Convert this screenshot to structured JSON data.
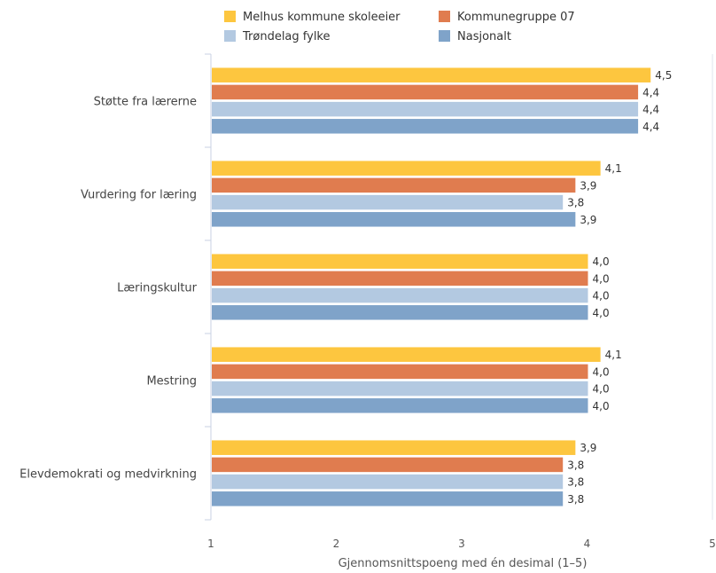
{
  "chart_data": {
    "type": "bar",
    "orientation": "horizontal",
    "categories": [
      "Støtte fra lærerne",
      "Vurdering for læring",
      "Læringskultur",
      "Mestring",
      "Elevdemokrati og medvirkning"
    ],
    "series": [
      {
        "name": "Melhus kommune skoleeier",
        "color": "#fdc63f",
        "values": [
          4.5,
          4.1,
          4.0,
          4.1,
          3.9
        ],
        "labels": [
          "4,5",
          "4,1",
          "4,0",
          "4,1",
          "3,9"
        ]
      },
      {
        "name": "Kommunegruppe 07",
        "color": "#e07c4f",
        "values": [
          4.4,
          3.9,
          4.0,
          4.0,
          3.8
        ],
        "labels": [
          "4,4",
          "3,9",
          "4,0",
          "4,0",
          "3,8"
        ]
      },
      {
        "name": "Trøndelag fylke",
        "color": "#b3c9e1",
        "values": [
          4.4,
          3.8,
          4.0,
          4.0,
          3.8
        ],
        "labels": [
          "4,4",
          "3,8",
          "4,0",
          "4,0",
          "3,8"
        ]
      },
      {
        "name": "Nasjonalt",
        "color": "#7fa3c9",
        "values": [
          4.4,
          3.9,
          4.0,
          4.0,
          3.8
        ],
        "labels": [
          "4,4",
          "3,9",
          "4,0",
          "4,0",
          "3,8"
        ]
      }
    ],
    "xlabel": "Gjennomsnittspoeng med én desimal (1–5)",
    "xlim": [
      1,
      5
    ],
    "xticks": [
      1,
      2,
      3,
      4,
      5
    ],
    "xtick_labels": [
      "1",
      "2",
      "3",
      "4",
      "5"
    ],
    "legend_position": "top-center",
    "grid": false
  }
}
